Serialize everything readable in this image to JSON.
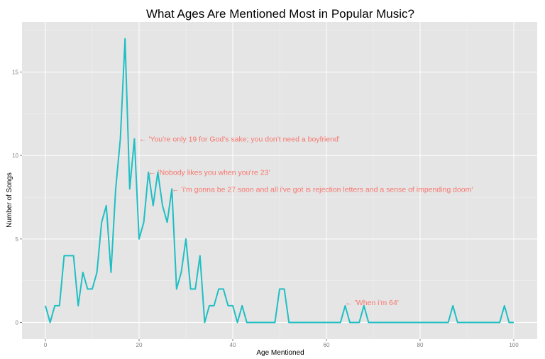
{
  "chart_data": {
    "type": "line",
    "title": "What Ages Are Mentioned Most in Popular Music?",
    "xlabel": "Age Mentioned",
    "ylabel": "Number of Songs",
    "xlim": [
      -5,
      105
    ],
    "ylim": [
      -1,
      18
    ],
    "x_ticks": [
      0,
      20,
      40,
      60,
      80,
      100
    ],
    "y_ticks": [
      0,
      5,
      10,
      15
    ],
    "grid": true,
    "colors": {
      "line": "#1fbfc4",
      "annotation": "#f8766d",
      "panel": "#e5e5e5",
      "grid": "#ffffff"
    },
    "series": [
      {
        "x": [
          0,
          1,
          2,
          3,
          4,
          5,
          6,
          7,
          8,
          9,
          10,
          11,
          12,
          13,
          14,
          15,
          16,
          17,
          18,
          19,
          20,
          21,
          22,
          23,
          24,
          25,
          26,
          27,
          28,
          29,
          30,
          31,
          32,
          33,
          34,
          35,
          36,
          37,
          38,
          39,
          40,
          41,
          42,
          43,
          44,
          45,
          46,
          47,
          48,
          49,
          50,
          51,
          52,
          53,
          54,
          55,
          56,
          57,
          58,
          59,
          60,
          61,
          62,
          63,
          64,
          65,
          66,
          67,
          68,
          69,
          70,
          71,
          72,
          73,
          74,
          75,
          76,
          77,
          78,
          79,
          80,
          81,
          82,
          83,
          84,
          85,
          86,
          87,
          88,
          89,
          90,
          91,
          92,
          93,
          94,
          95,
          96,
          97,
          98,
          99,
          100
        ],
        "values": [
          1,
          0,
          1,
          1,
          4,
          4,
          4,
          1,
          3,
          2,
          2,
          3,
          6,
          7,
          3,
          8,
          11,
          17,
          8,
          11,
          5,
          6,
          9,
          7,
          9,
          7,
          6,
          8,
          2,
          3,
          5,
          2,
          2,
          4,
          0,
          1,
          1,
          2,
          2,
          1,
          1,
          0,
          1,
          0,
          0,
          0,
          0,
          0,
          0,
          0,
          2,
          2,
          0,
          0,
          0,
          0,
          0,
          0,
          0,
          0,
          0,
          0,
          0,
          0,
          1,
          0,
          0,
          0,
          1,
          0,
          0,
          0,
          0,
          0,
          0,
          0,
          0,
          0,
          0,
          0,
          0,
          0,
          0,
          0,
          0,
          0,
          0,
          1,
          0,
          0,
          0,
          0,
          0,
          0,
          0,
          0,
          0,
          0,
          1,
          0,
          0
        ]
      }
    ],
    "annotations": [
      {
        "x": 20,
        "y": 11,
        "text": "← 'You're only 19 for God's sake; you don't need a boyfriend'"
      },
      {
        "x": 22,
        "y": 9,
        "text": "← 'Nobody likes you when you're 23'"
      },
      {
        "x": 27,
        "y": 8,
        "text": "← 'i'm gonna be 27 soon and all i've got is rejection letters and a sense of impending doom'"
      },
      {
        "x": 64,
        "y": 1.2,
        "text": "← 'When i'm 64'"
      }
    ]
  }
}
